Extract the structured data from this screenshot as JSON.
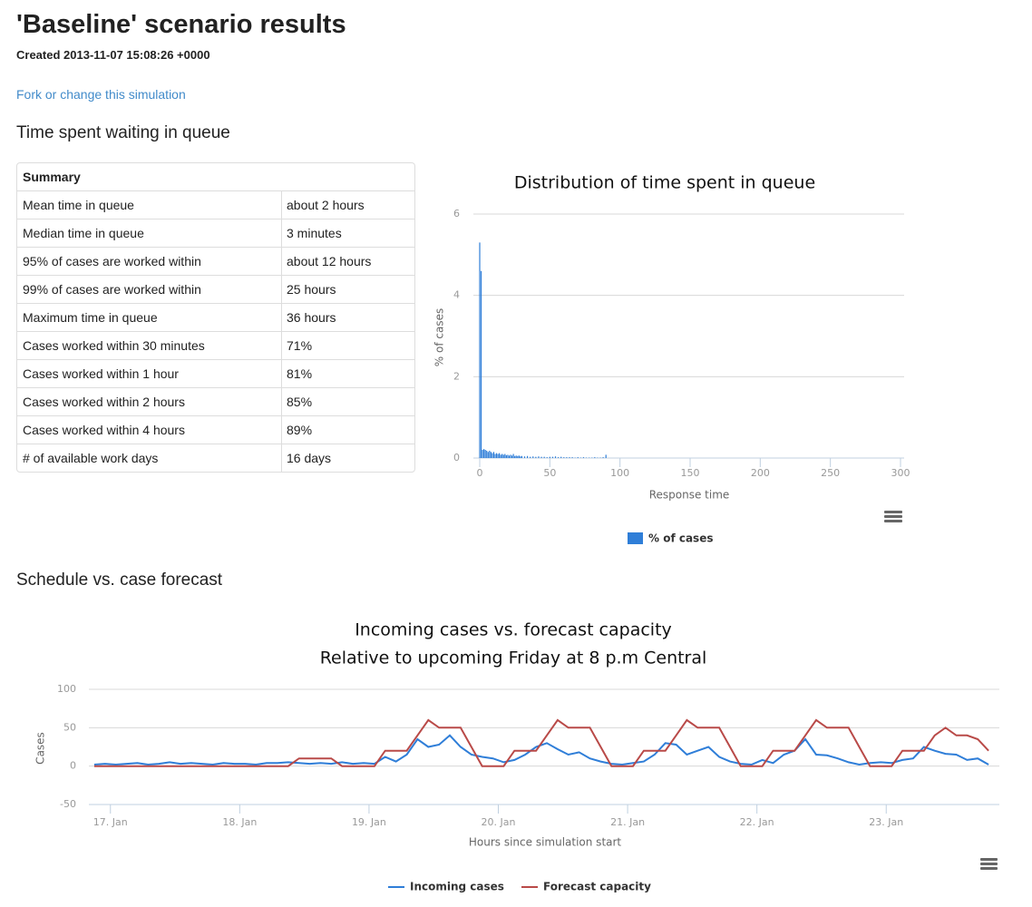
{
  "header": {
    "title": "'Baseline' scenario results",
    "created": "Created 2013-11-07 15:08:26 +0000",
    "link": "Fork or change this simulation"
  },
  "sections": [
    "Time spent waiting in queue",
    "Schedule vs. case forecast"
  ],
  "table": {
    "header": "Summary",
    "rows": [
      [
        "Mean time in queue",
        "about 2 hours"
      ],
      [
        "Median time in queue",
        "3 minutes"
      ],
      [
        "95% of cases are worked within",
        "about 12 hours"
      ],
      [
        "99% of cases are worked within",
        "25 hours"
      ],
      [
        "Maximum time in queue",
        "36 hours"
      ],
      [
        "Cases worked within 30 minutes",
        "71%"
      ],
      [
        "Cases worked within 1 hour",
        "81%"
      ],
      [
        "Cases worked within 2 hours",
        "85%"
      ],
      [
        "Cases worked within 4 hours",
        "89%"
      ],
      [
        "# of available work days",
        "16 days"
      ]
    ]
  },
  "chart_data": [
    {
      "type": "column",
      "title": "Distribution of time spent in queue",
      "x_label": "Response time",
      "y_label": "% of cases",
      "x": [
        0,
        1,
        2,
        3,
        4,
        5,
        6,
        7,
        8,
        9,
        10,
        11,
        12,
        13,
        14,
        15,
        16,
        17,
        18,
        19,
        20,
        21,
        22,
        23,
        24,
        25,
        26,
        27,
        28,
        29,
        30,
        32,
        34,
        36,
        38,
        40,
        42,
        44,
        46,
        48,
        50,
        52,
        54,
        56,
        58,
        60,
        62,
        64,
        66,
        68,
        70,
        72,
        74,
        76,
        78,
        80,
        82,
        84,
        86,
        88,
        90
      ],
      "series": [
        {
          "name": "% of cases",
          "color": "#2f7ed8",
          "values": [
            5.3,
            4.6,
            0.2,
            0.22,
            0.2,
            0.18,
            0.15,
            0.18,
            0.15,
            0.12,
            0.15,
            0.1,
            0.12,
            0.1,
            0.12,
            0.08,
            0.1,
            0.08,
            0.1,
            0.07,
            0.08,
            0.06,
            0.08,
            0.06,
            0.1,
            0.05,
            0.06,
            0.05,
            0.06,
            0.04,
            0.05,
            0.04,
            0.05,
            0.03,
            0.04,
            0.03,
            0.04,
            0.03,
            0.03,
            0.02,
            0.03,
            0.03,
            0.04,
            0.02,
            0.03,
            0.02,
            0.02,
            0.02,
            0.02,
            0.01,
            0.02,
            0.01,
            0.02,
            0.01,
            0.01,
            0.01,
            0.02,
            0.01,
            0.01,
            0.02,
            0.08
          ]
        }
      ],
      "xlim": [
        0,
        300
      ],
      "xticks": [
        0,
        50,
        100,
        150,
        200,
        250,
        300
      ],
      "ylim": [
        0,
        6
      ],
      "yticks": [
        0,
        2,
        4,
        6
      ],
      "grid": true
    },
    {
      "type": "line",
      "title": "Incoming cases vs. forecast capacity",
      "subtitle": "Relative to upcoming Friday at 8 p.m Central",
      "x_label": "Hours since simulation start",
      "y_label": "Cases",
      "x": [
        0,
        2,
        4,
        6,
        8,
        10,
        12,
        14,
        16,
        18,
        20,
        22,
        24,
        26,
        28,
        30,
        32,
        34,
        36,
        38,
        40,
        42,
        44,
        46,
        48,
        50,
        52,
        54,
        56,
        58,
        60,
        62,
        64,
        66,
        68,
        70,
        72,
        74,
        76,
        78,
        80,
        82,
        84,
        86,
        88,
        90,
        92,
        94,
        96,
        98,
        100,
        102,
        104,
        106,
        108,
        110,
        112,
        114,
        116,
        118,
        120,
        122,
        124,
        126,
        128,
        130,
        132,
        134,
        136,
        138,
        140,
        142,
        144,
        146,
        148,
        150,
        152,
        154,
        156,
        158,
        160,
        162,
        164,
        166
      ],
      "series": [
        {
          "name": "Incoming cases",
          "color": "#2f7ed8",
          "values": [
            2,
            3,
            2,
            3,
            4,
            2,
            3,
            5,
            3,
            4,
            3,
            2,
            4,
            3,
            3,
            2,
            4,
            4,
            5,
            4,
            3,
            4,
            3,
            5,
            3,
            4,
            3,
            12,
            6,
            15,
            35,
            25,
            28,
            40,
            25,
            15,
            12,
            10,
            5,
            8,
            15,
            25,
            30,
            22,
            15,
            18,
            10,
            6,
            3,
            2,
            4,
            6,
            15,
            30,
            28,
            15,
            20,
            25,
            12,
            6,
            3,
            2,
            8,
            4,
            15,
            20,
            35,
            15,
            14,
            10,
            5,
            2,
            4,
            5,
            4,
            8,
            10,
            25,
            20,
            16,
            15,
            8,
            10,
            2
          ]
        },
        {
          "name": "Forecast capacity",
          "color": "#b94a48",
          "values": [
            0,
            0,
            0,
            0,
            0,
            0,
            0,
            0,
            0,
            0,
            0,
            0,
            0,
            0,
            0,
            0,
            0,
            0,
            0,
            10,
            10,
            10,
            10,
            0,
            0,
            0,
            0,
            20,
            20,
            20,
            40,
            60,
            50,
            50,
            50,
            25,
            0,
            0,
            0,
            20,
            20,
            20,
            40,
            60,
            50,
            50,
            50,
            25,
            0,
            0,
            0,
            20,
            20,
            20,
            40,
            60,
            50,
            50,
            50,
            25,
            0,
            0,
            0,
            20,
            20,
            20,
            40,
            60,
            50,
            50,
            50,
            25,
            0,
            0,
            0,
            20,
            20,
            20,
            40,
            50,
            40,
            40,
            35,
            20
          ]
        }
      ],
      "xlim": [
        -1,
        168
      ],
      "xticks": [
        {
          "value": 3,
          "label": "17. Jan"
        },
        {
          "value": 27,
          "label": "18. Jan"
        },
        {
          "value": 51,
          "label": "19. Jan"
        },
        {
          "value": 75,
          "label": "20. Jan"
        },
        {
          "value": 99,
          "label": "21. Jan"
        },
        {
          "value": 123,
          "label": "22. Jan"
        },
        {
          "value": 147,
          "label": "23. Jan"
        }
      ],
      "ylim": [
        -50,
        100
      ],
      "yticks": [
        -50,
        0,
        50,
        100
      ],
      "grid": true
    }
  ]
}
